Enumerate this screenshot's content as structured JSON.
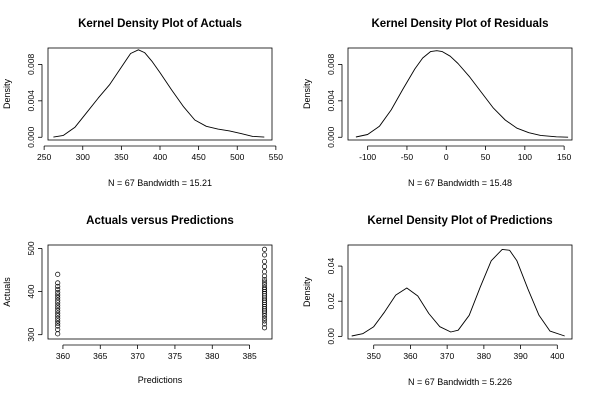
{
  "chart_data": [
    {
      "type": "line",
      "title": "Kernel Density Plot of Actuals",
      "ylabel": "Density",
      "subtitle": "N = 67   Bandwidth = 15.21",
      "xlim": [
        255,
        545
      ],
      "ylim": [
        -0.0003,
        0.0098
      ],
      "x_ticks": [
        250,
        300,
        350,
        400,
        450,
        500,
        550
      ],
      "y_ticks": [
        0.0,
        0.004,
        0.008
      ],
      "y_tick_labels": [
        "0.000",
        "0.004",
        "0.008"
      ],
      "series": [
        {
          "x": [
            262,
            275,
            290,
            305,
            320,
            335,
            350,
            362,
            372,
            380,
            390,
            400,
            415,
            430,
            445,
            460,
            475,
            490,
            505,
            520,
            535
          ],
          "y": [
            2e-05,
            0.0002,
            0.0011,
            0.0027,
            0.0043,
            0.0058,
            0.0077,
            0.0092,
            0.0096,
            0.0093,
            0.0083,
            0.0071,
            0.0052,
            0.0034,
            0.0019,
            0.0012,
            0.0009,
            0.0007,
            0.0004,
            0.0001,
            2e-05
          ]
        }
      ]
    },
    {
      "type": "line",
      "title": "Kernel Density Plot of Residuals",
      "ylabel": "Density",
      "subtitle": "N = 67   Bandwidth = 15.48",
      "xlim": [
        -125,
        160
      ],
      "ylim": [
        -0.0003,
        0.0098
      ],
      "x_ticks": [
        -100,
        -50,
        0,
        50,
        100,
        150
      ],
      "y_ticks": [
        0.0,
        0.004,
        0.008
      ],
      "y_tick_labels": [
        "0.000",
        "0.004",
        "0.008"
      ],
      "series": [
        {
          "x": [
            -115,
            -100,
            -85,
            -70,
            -55,
            -40,
            -30,
            -20,
            -12,
            -5,
            5,
            15,
            30,
            45,
            60,
            75,
            90,
            105,
            120,
            140,
            155
          ],
          "y": [
            3e-05,
            0.0003,
            0.0012,
            0.003,
            0.0053,
            0.0075,
            0.0087,
            0.0094,
            0.0095,
            0.0094,
            0.0089,
            0.0081,
            0.0066,
            0.0049,
            0.0032,
            0.0019,
            0.001,
            0.0005,
            0.0002,
            5e-05,
            1e-05
          ]
        }
      ]
    },
    {
      "type": "scatter",
      "title": "Actuals versus Predictions",
      "xlabel": "Predictions",
      "ylabel": "Actuals",
      "xlim": [
        358,
        388
      ],
      "ylim": [
        290,
        508
      ],
      "x_ticks": [
        360,
        365,
        370,
        375,
        380,
        385
      ],
      "y_ticks": [
        300,
        400,
        500
      ],
      "y_tick_labels": [
        "300",
        "400",
        "500"
      ],
      "series": [
        {
          "points": [
            [
              359.3,
              440
            ],
            [
              359.3,
              420
            ],
            [
              359.3,
              412
            ],
            [
              359.3,
              405
            ],
            [
              359.3,
              398
            ],
            [
              359.3,
              392
            ],
            [
              359.3,
              386
            ],
            [
              359.3,
              380
            ],
            [
              359.3,
              374
            ],
            [
              359.3,
              368
            ],
            [
              359.3,
              362
            ],
            [
              359.3,
              356
            ],
            [
              359.3,
              350
            ],
            [
              359.3,
              344
            ],
            [
              359.3,
              338
            ],
            [
              359.3,
              332
            ],
            [
              359.3,
              326
            ],
            [
              359.3,
              320
            ],
            [
              359.3,
              312
            ],
            [
              359.3,
              302
            ],
            [
              387.0,
              498
            ],
            [
              387.0,
              485
            ],
            [
              387.0,
              470
            ],
            [
              387.0,
              458
            ],
            [
              387.0,
              446
            ],
            [
              387.0,
              436
            ],
            [
              387.0,
              428
            ],
            [
              387.0,
              422
            ],
            [
              387.0,
              416
            ],
            [
              387.0,
              410
            ],
            [
              387.0,
              405
            ],
            [
              387.0,
              400
            ],
            [
              387.0,
              395
            ],
            [
              387.0,
              390
            ],
            [
              387.0,
              385
            ],
            [
              387.0,
              380
            ],
            [
              387.0,
              375
            ],
            [
              387.0,
              370
            ],
            [
              387.0,
              365
            ],
            [
              387.0,
              360
            ],
            [
              387.0,
              355
            ],
            [
              387.0,
              350
            ],
            [
              387.0,
              344
            ],
            [
              387.0,
              338
            ],
            [
              387.0,
              332
            ],
            [
              387.0,
              325
            ],
            [
              387.0,
              316
            ]
          ]
        }
      ]
    },
    {
      "type": "line",
      "title": "Kernel Density Plot of Predictions",
      "ylabel": "Density",
      "subtitle": "N = 67   Bandwidth = 5.226",
      "xlim": [
        343,
        404
      ],
      "ylim": [
        -0.0015,
        0.052
      ],
      "x_ticks": [
        350,
        360,
        370,
        380,
        390,
        400
      ],
      "y_ticks": [
        0.0,
        0.02,
        0.04
      ],
      "y_tick_labels": [
        "0.00",
        "0.02",
        "0.04"
      ],
      "series": [
        {
          "x": [
            344,
            347,
            350,
            353,
            356,
            359,
            362,
            365,
            368,
            371,
            373,
            376,
            379,
            382,
            385,
            387,
            389,
            392,
            395,
            398,
            402
          ],
          "y": [
            0.0002,
            0.0015,
            0.0055,
            0.014,
            0.0235,
            0.0275,
            0.023,
            0.013,
            0.0055,
            0.0025,
            0.0035,
            0.012,
            0.028,
            0.043,
            0.0495,
            0.049,
            0.043,
            0.027,
            0.012,
            0.003,
            0.0002
          ]
        }
      ]
    }
  ]
}
